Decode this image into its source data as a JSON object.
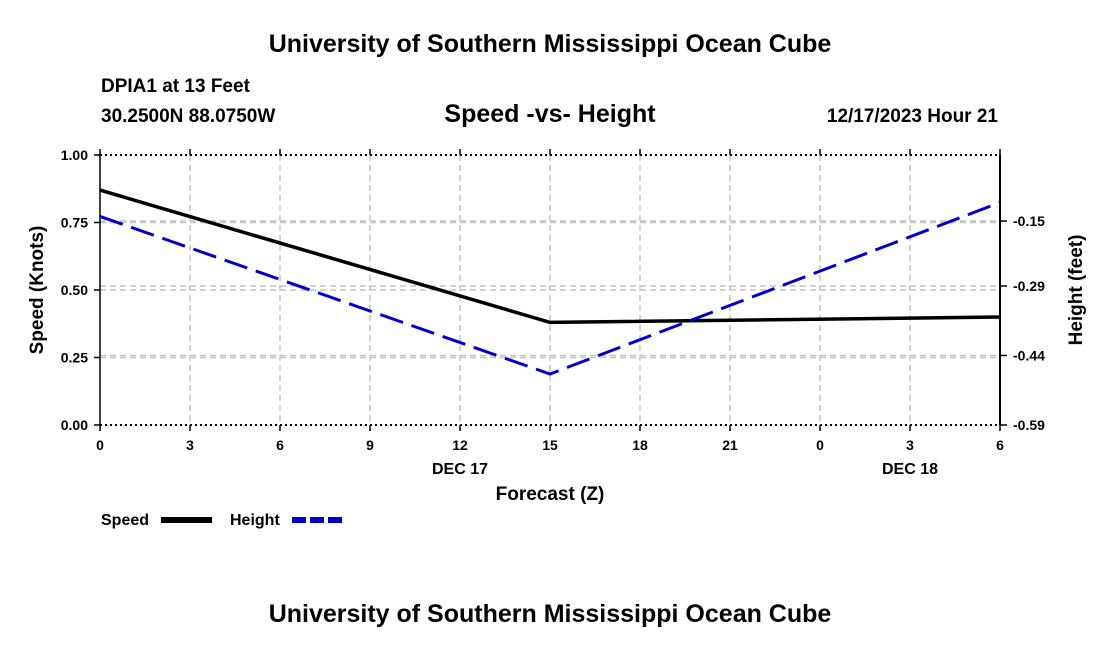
{
  "header": {
    "title": "University of Southern Mississippi Ocean Cube",
    "station": "DPIA1 at 13 Feet",
    "coordinates": "30.2500N  88.0750W",
    "datetime": "12/17/2023 Hour 21"
  },
  "footer": {
    "title": "University of Southern Mississippi Ocean Cube"
  },
  "chart_data": {
    "type": "line",
    "title": "Speed -vs- Height",
    "xlabel": "Forecast (Z)",
    "ylabel": "Speed (Knots)",
    "ylabel_right": "Height (feet)",
    "x_ticks": [
      "0",
      "3",
      "6",
      "9",
      "12",
      "15",
      "18",
      "21",
      "0",
      "3",
      "6"
    ],
    "date_labels": [
      {
        "label": "DEC 17",
        "at_tick": 4
      },
      {
        "label": "DEC 18",
        "at_tick": 9
      }
    ],
    "y_left": {
      "ticks": [
        "0.00",
        "0.25",
        "0.50",
        "0.75",
        "1.00"
      ],
      "range": [
        0,
        1
      ]
    },
    "y_right": {
      "ticks": [
        "-0.15",
        "-0.29",
        "-0.44",
        "-0.59"
      ],
      "tick_values": [
        -0.15,
        -0.29,
        -0.44,
        -0.59
      ],
      "range": [
        -0.59,
        -0.0075
      ]
    },
    "grid": true,
    "series": [
      {
        "name": "Speed",
        "axis": "left",
        "color": "#000000",
        "dash": "solid",
        "x": [
          0,
          15,
          30
        ],
        "values": [
          0.87,
          0.38,
          0.4
        ]
      },
      {
        "name": "Height",
        "axis": "right",
        "color": "#0000cc",
        "dash": "dashed",
        "x": [
          0,
          15,
          30
        ],
        "values": [
          -0.14,
          -0.48,
          -0.11
        ]
      }
    ],
    "legend": {
      "position": "bottom-left",
      "entries": [
        "Speed",
        "Height"
      ]
    }
  }
}
